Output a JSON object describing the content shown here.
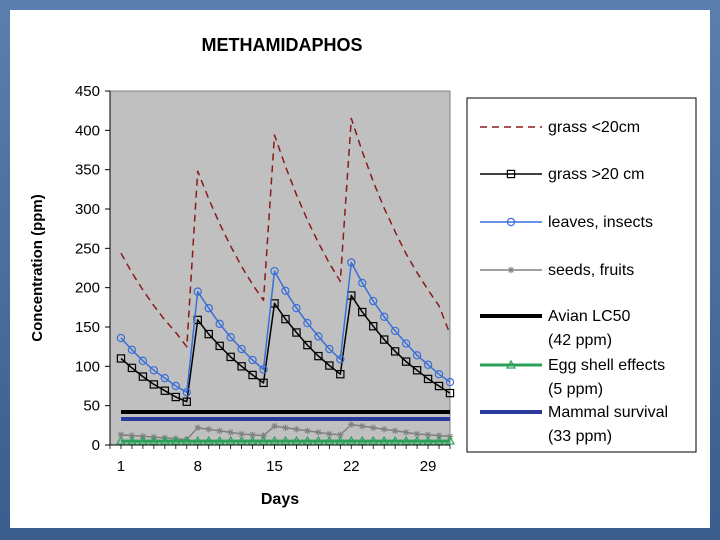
{
  "chart_data": {
    "type": "line",
    "title": "METHAMIDAPHOS",
    "xlabel": "Days",
    "ylabel": "Concentration (ppm)",
    "xlim": [
      0,
      31
    ],
    "ylim": [
      0,
      450
    ],
    "xticks": [
      "1",
      "8",
      "15",
      "22",
      "29"
    ],
    "xtick_values": [
      1,
      8,
      15,
      22,
      29
    ],
    "yticks": [
      "0",
      "50",
      "100",
      "150",
      "200",
      "250",
      "300",
      "350",
      "400",
      "450"
    ],
    "ytick_values": [
      0,
      50,
      100,
      150,
      200,
      250,
      300,
      350,
      400,
      450
    ],
    "plot_background": "#c0c0c0",
    "x": [
      1,
      2,
      3,
      4,
      5,
      6,
      7,
      8,
      9,
      10,
      11,
      12,
      13,
      14,
      15,
      16,
      17,
      18,
      19,
      20,
      21,
      22,
      23,
      24,
      25,
      26,
      27,
      28,
      29,
      30,
      31
    ],
    "series": [
      {
        "name": "grass <20cm",
        "legend_text": [
          "grass <20cm"
        ],
        "style": "dashed",
        "marker": "none",
        "color": "#8b1a1a",
        "width": 1.5,
        "values": [
          244,
          219,
          197,
          177,
          159,
          143,
          125,
          348,
          313,
          281,
          253,
          227,
          204,
          184,
          394,
          354,
          318,
          286,
          257,
          231,
          208,
          415,
          373,
          335,
          301,
          271,
          243,
          219,
          197,
          177,
          141
        ]
      },
      {
        "name": "grass >20 cm",
        "legend_text": [
          "grass >20 cm"
        ],
        "style": "solid",
        "marker": "square",
        "color": "#000000",
        "width": 1.5,
        "values": [
          110,
          98,
          87,
          77,
          69,
          61,
          55,
          159,
          141,
          126,
          112,
          100,
          89,
          79,
          180,
          160,
          143,
          127,
          113,
          101,
          90,
          190,
          169,
          151,
          134,
          119,
          106,
          95,
          84,
          75,
          66
        ]
      },
      {
        "name": "leaves, insects",
        "legend_text": [
          "leaves, insects"
        ],
        "style": "solid",
        "marker": "circle",
        "color": "#3a6fd8",
        "width": 1.5,
        "values": [
          136,
          121,
          107,
          95,
          85,
          75,
          67,
          195,
          174,
          154,
          137,
          122,
          108,
          96,
          221,
          196,
          174,
          155,
          138,
          122,
          109,
          232,
          206,
          183,
          163,
          145,
          129,
          114,
          102,
          90,
          80
        ]
      },
      {
        "name": "seeds, fruits",
        "legend_text": [
          "seeds, fruits"
        ],
        "style": "solid",
        "marker": "asterisk",
        "color": "#808080",
        "width": 1.5,
        "values": [
          13,
          12,
          11,
          10,
          9,
          8,
          7,
          22,
          20,
          18,
          16,
          14,
          13,
          12,
          24,
          22,
          20,
          18,
          16,
          14,
          13,
          26,
          24,
          22,
          20,
          18,
          16,
          14,
          13,
          12,
          11
        ]
      },
      {
        "name": "Avian LC50",
        "legend_text": [
          "Avian LC50",
          "(42 ppm)"
        ],
        "style": "solid",
        "marker": "none",
        "color": "#000000",
        "width": 4,
        "constant": 42
      },
      {
        "name": "Egg shell effects",
        "legend_text": [
          "Egg shell effects",
          "(5 ppm)"
        ],
        "style": "solid",
        "marker": "triangle",
        "color": "#2ca05a",
        "width": 3,
        "constant": 5
      },
      {
        "name": "Mammal survival",
        "legend_text": [
          "Mammal survival",
          "(33 ppm)"
        ],
        "style": "solid",
        "marker": "none",
        "color": "#2b3a9b",
        "width": 4,
        "constant": 33
      }
    ],
    "legend_position": "right"
  }
}
